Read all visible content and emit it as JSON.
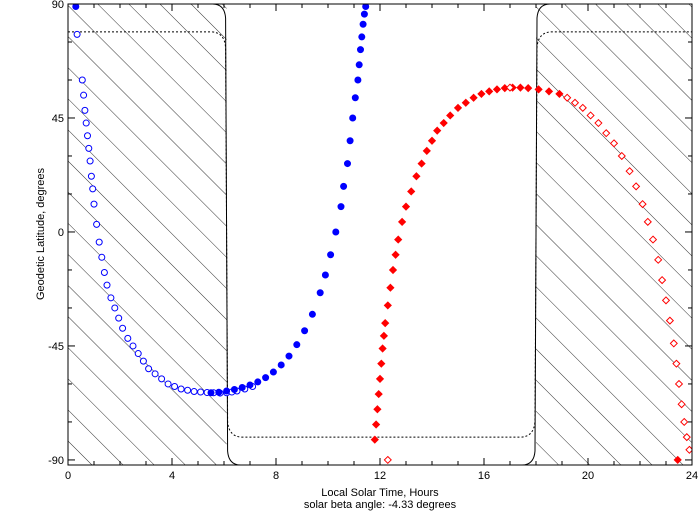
{
  "chart_data": {
    "type": "scatter",
    "xlabel": "Local Solar Time, Hours",
    "ylabel": "Geodetic Latitude, degrees",
    "caption": "solar beta angle:  -4.33 degrees",
    "xlim": [
      0,
      24
    ],
    "ylim": [
      -92,
      90
    ],
    "x_ticks": [
      0,
      4,
      8,
      12,
      16,
      20,
      24
    ],
    "y_ticks": [
      90,
      45,
      0,
      -45,
      -90
    ],
    "x_minor_step": 1,
    "y_minor_step": 15,
    "grid": false,
    "night_regions": [
      [
        0,
        6.1
      ],
      [
        18.0,
        24
      ]
    ],
    "terminator_plateau": {
      "upper": 79,
      "lower": -81
    },
    "colors": {
      "blue": "#0000ff",
      "red": "#ff0000",
      "axes": "#000000"
    },
    "series": [
      {
        "color": "#0000ff",
        "marker": "circle",
        "filled": false,
        "x": [
          0.35,
          0.55,
          0.6,
          0.65,
          0.7,
          0.75,
          0.8,
          0.85,
          0.9,
          0.95,
          1.0,
          1.1,
          1.2,
          1.3,
          1.4,
          1.5,
          1.65,
          1.8,
          1.95,
          2.1,
          2.3,
          2.5,
          2.7,
          2.9,
          3.1,
          3.35,
          3.6,
          3.85,
          4.1,
          4.35,
          4.6,
          4.85,
          5.1,
          5.35,
          5.6,
          5.85,
          6.1,
          6.3,
          6.5,
          6.8,
          7.1
        ],
        "y": [
          78,
          60,
          54,
          48,
          43,
          38,
          33,
          28,
          22,
          17,
          11,
          3,
          -4,
          -10,
          -16,
          -21,
          -26,
          -30,
          -34,
          -38,
          -42,
          -45,
          -48,
          -51,
          -54,
          -56,
          -58,
          -60,
          -61,
          -62,
          -62.5,
          -63,
          -63.2,
          -63.4,
          -63.5,
          -63.6,
          -63.5,
          -63.2,
          -62.8,
          -62,
          -61
        ]
      },
      {
        "color": "#0000ff",
        "marker": "circle",
        "filled": true,
        "x": [
          0.3,
          5.5,
          5.8,
          6.1,
          6.4,
          6.7,
          7.0,
          7.3,
          7.6,
          7.9,
          8.2,
          8.5,
          8.8,
          9.1,
          9.4,
          9.7,
          9.9,
          10.1,
          10.3,
          10.5,
          10.6,
          10.75,
          10.85,
          10.95,
          11.05,
          11.15,
          11.2,
          11.25,
          11.3,
          11.35,
          11.4,
          11.45
        ],
        "y": [
          89,
          -63.5,
          -63.3,
          -62.8,
          -62.2,
          -61.4,
          -60.4,
          -59.2,
          -57.5,
          -55.3,
          -52.5,
          -49,
          -44.5,
          -39,
          -32.5,
          -24,
          -17,
          -9,
          0,
          10,
          18,
          27,
          36,
          45,
          53,
          60,
          66,
          72,
          77,
          82,
          86,
          89
        ]
      },
      {
        "color": "#ff0000",
        "marker": "diamond",
        "filled": true,
        "x": [
          11.8,
          11.85,
          11.9,
          11.95,
          12.0,
          12.05,
          12.1,
          12.15,
          12.2,
          12.3,
          12.4,
          12.5,
          12.6,
          12.7,
          12.85,
          13.0,
          13.2,
          13.4,
          13.6,
          13.8,
          14.0,
          14.2,
          14.45,
          14.7,
          15.0,
          15.3,
          15.6,
          15.9,
          16.2,
          16.5,
          16.8,
          17.1,
          17.4,
          17.7,
          18.1,
          18.5,
          18.9,
          23.45
        ],
        "y": [
          -82,
          -76,
          -70,
          -64,
          -58,
          -52,
          -46,
          -41,
          -36,
          -29,
          -22,
          -15,
          -9,
          -3,
          4,
          10,
          16,
          22,
          27,
          32,
          36,
          40,
          43,
          46,
          49,
          51,
          53,
          54.5,
          55.5,
          56.3,
          56.8,
          57,
          57,
          56.8,
          56.3,
          55.5,
          54.5,
          -90
        ]
      },
      {
        "color": "#ff0000",
        "marker": "diamond",
        "filled": false,
        "x": [
          12.3,
          17.0,
          19.2,
          19.5,
          19.8,
          20.1,
          20.4,
          20.7,
          21.0,
          21.3,
          21.6,
          21.85,
          22.1,
          22.3,
          22.5,
          22.7,
          22.85,
          23.0,
          23.15,
          23.3,
          23.4,
          23.5,
          23.6,
          23.7,
          23.8,
          23.9
        ],
        "y": [
          -90,
          57,
          53,
          51,
          49,
          46,
          43,
          39,
          35,
          30,
          24,
          18,
          11,
          4,
          -3,
          -11,
          -19,
          -27,
          -35,
          -44,
          -52,
          -60,
          -68,
          -75,
          -81,
          -86
        ]
      }
    ]
  }
}
